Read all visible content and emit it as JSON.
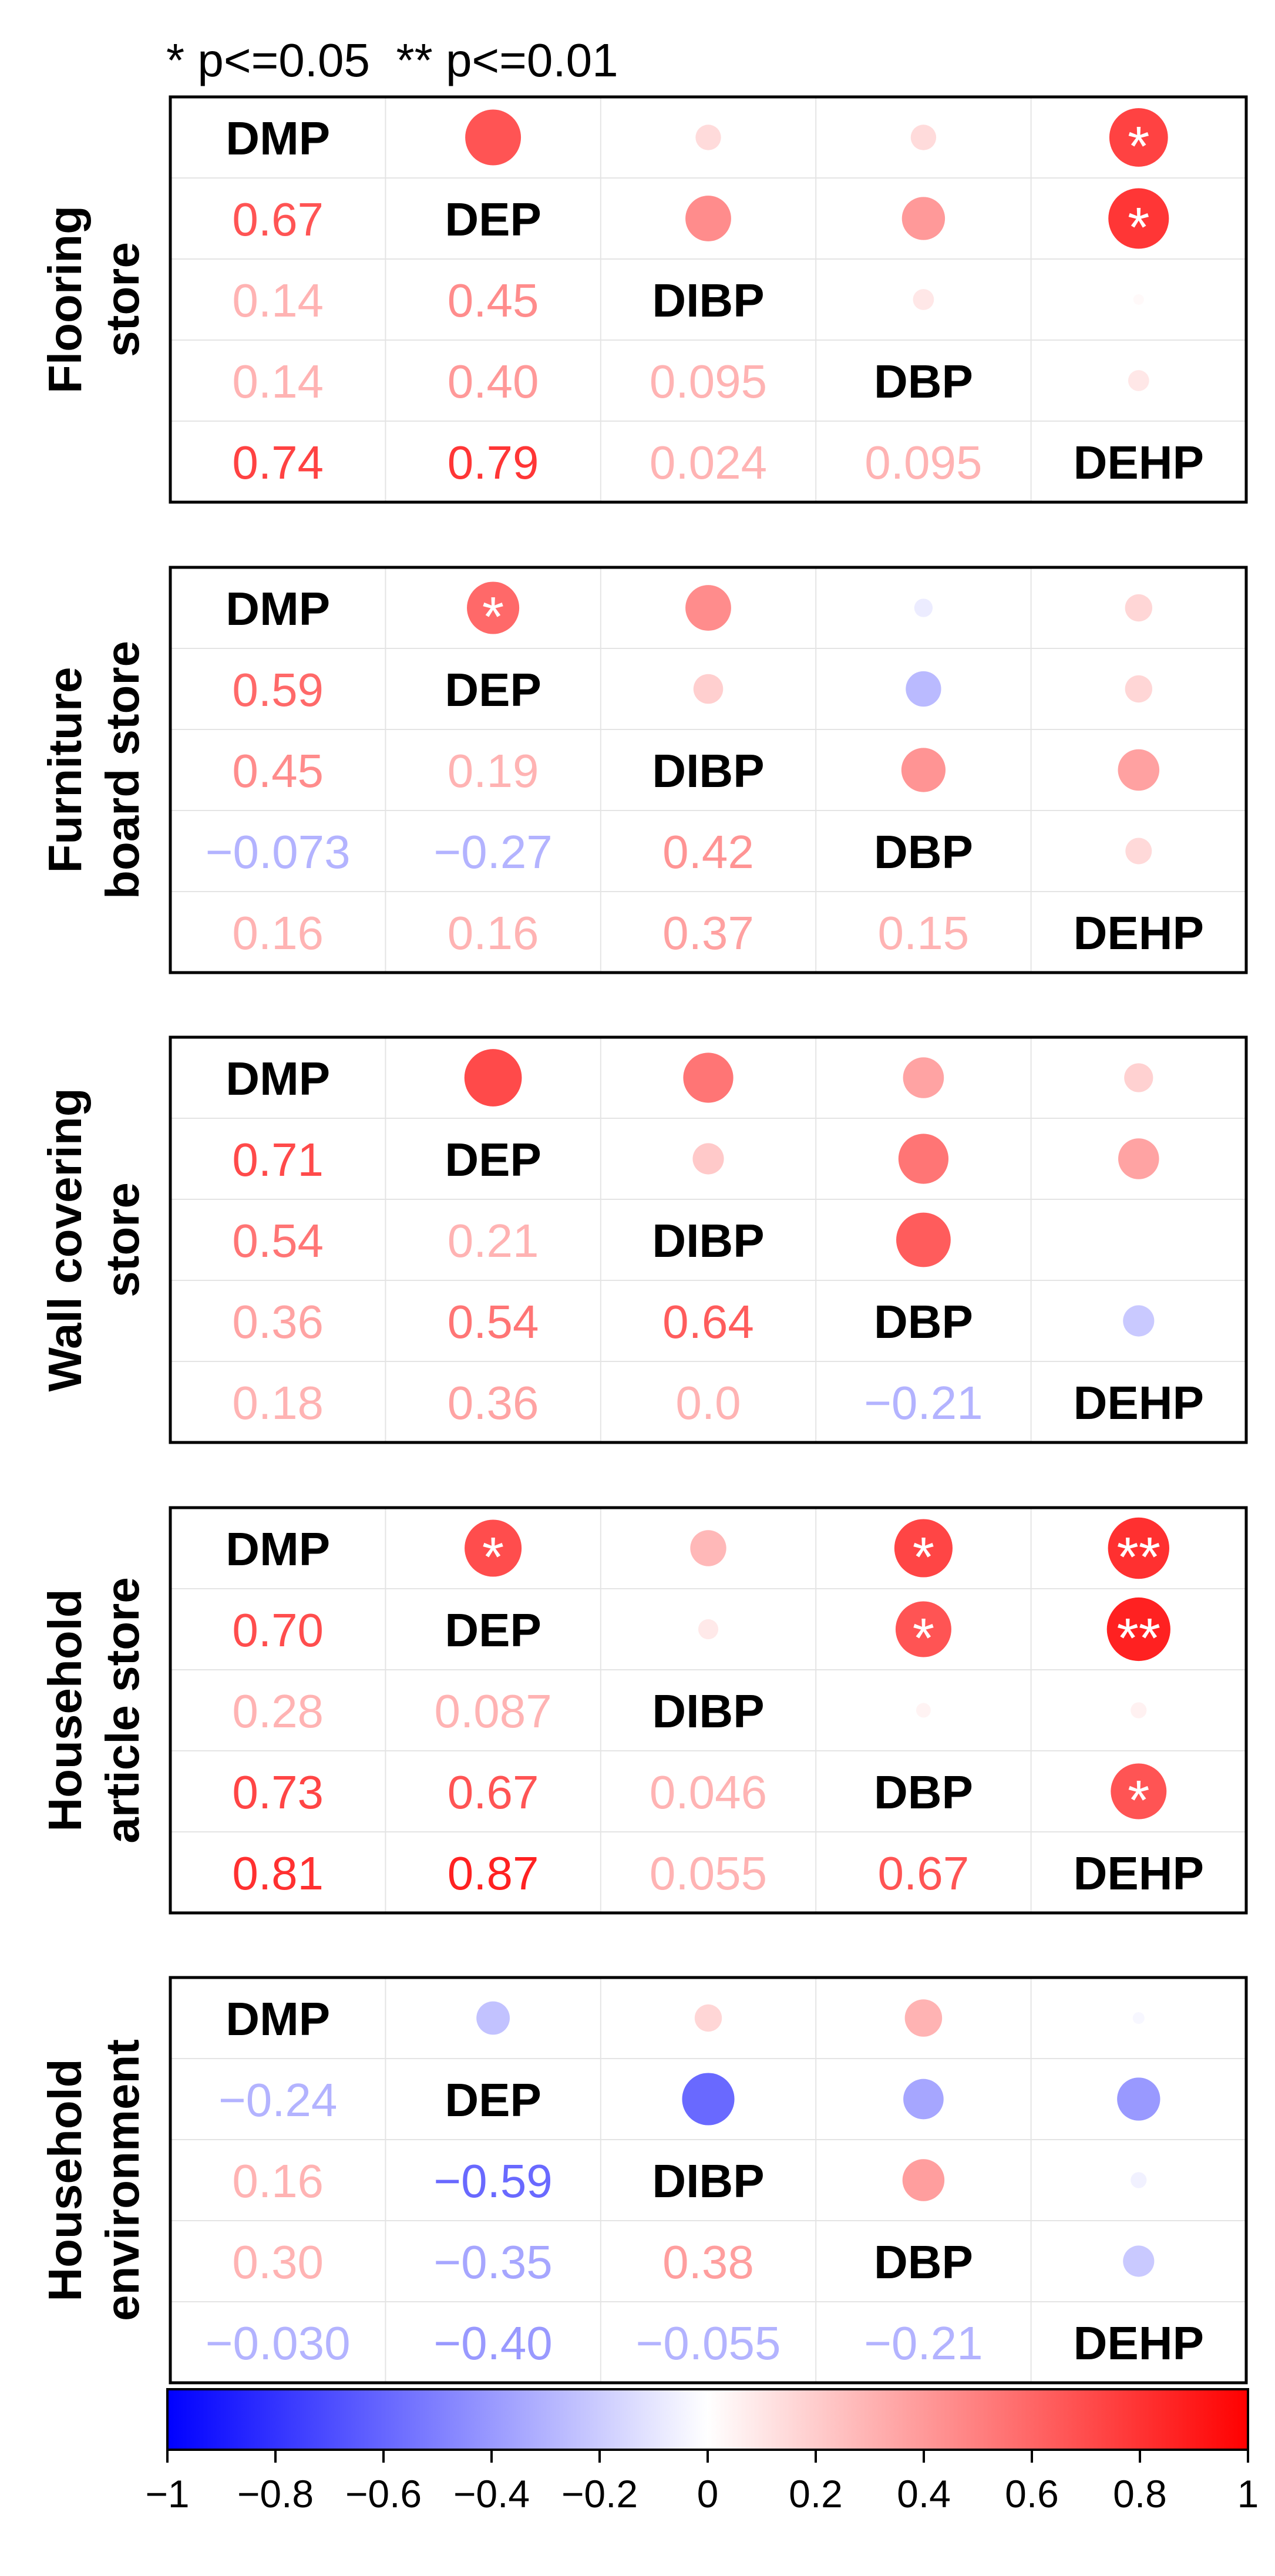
{
  "legend_note": "* p<=0.05  ** p<=0.01",
  "colorbar": {
    "ticks": [
      "−1",
      "−0.8",
      "−0.6",
      "−0.4",
      "−0.2",
      "0",
      "0.2",
      "0.4",
      "0.6",
      "0.8",
      "1"
    ],
    "range": [
      -1,
      1
    ],
    "colors": {
      "neg": "#0000ff",
      "zero": "#ffffff",
      "pos": "#ff0000"
    }
  },
  "chart_data": [
    {
      "type": "heatmap",
      "panel": "Flooring store",
      "title": "Flooring\nstore",
      "variables": [
        "DMP",
        "DEP",
        "DIBP",
        "DBP",
        "DEHP"
      ],
      "matrix": [
        [
          1,
          0.67,
          0.14,
          0.14,
          0.74
        ],
        [
          0.67,
          1,
          0.45,
          0.4,
          0.79
        ],
        [
          0.14,
          0.45,
          1,
          0.095,
          0.024
        ],
        [
          0.14,
          0.4,
          0.095,
          1,
          0.095
        ],
        [
          0.74,
          0.79,
          0.024,
          0.095,
          1
        ]
      ],
      "lower_labels": [
        [
          null,
          null,
          null,
          null,
          null
        ],
        [
          "0.67",
          null,
          null,
          null,
          null
        ],
        [
          "0.14",
          "0.45",
          null,
          null,
          null
        ],
        [
          "0.14",
          "0.40",
          "0.095",
          null,
          null
        ],
        [
          "0.74",
          "0.79",
          "0.024",
          "0.095",
          null
        ]
      ],
      "stars": [
        [
          null,
          "",
          "",
          "",
          "*"
        ],
        [
          null,
          null,
          "",
          "",
          "*"
        ],
        [
          null,
          null,
          null,
          "",
          ""
        ],
        [
          null,
          null,
          null,
          null,
          ""
        ],
        [
          null,
          null,
          null,
          null,
          null
        ]
      ]
    },
    {
      "type": "heatmap",
      "panel": "Furniture board store",
      "title": "Furniture\nboard store",
      "variables": [
        "DMP",
        "DEP",
        "DIBP",
        "DBP",
        "DEHP"
      ],
      "matrix": [
        [
          1,
          0.59,
          0.45,
          -0.073,
          0.16
        ],
        [
          0.59,
          1,
          0.19,
          -0.27,
          0.16
        ],
        [
          0.45,
          0.19,
          1,
          0.42,
          0.37
        ],
        [
          -0.073,
          -0.27,
          0.42,
          1,
          0.15
        ],
        [
          0.16,
          0.16,
          0.37,
          0.15,
          1
        ]
      ],
      "lower_labels": [
        [
          null,
          null,
          null,
          null,
          null
        ],
        [
          "0.59",
          null,
          null,
          null,
          null
        ],
        [
          "0.45",
          "0.19",
          null,
          null,
          null
        ],
        [
          "−0.073",
          "−0.27",
          "0.42",
          null,
          null
        ],
        [
          "0.16",
          "0.16",
          "0.37",
          "0.15",
          null
        ]
      ],
      "stars": [
        [
          null,
          "*",
          "",
          "",
          ""
        ],
        [
          null,
          null,
          "",
          "",
          ""
        ],
        [
          null,
          null,
          null,
          "",
          ""
        ],
        [
          null,
          null,
          null,
          null,
          ""
        ],
        [
          null,
          null,
          null,
          null,
          null
        ]
      ]
    },
    {
      "type": "heatmap",
      "panel": "Wall covering store",
      "title": "Wall covering\nstore",
      "variables": [
        "DMP",
        "DEP",
        "DIBP",
        "DBP",
        "DEHP"
      ],
      "matrix": [
        [
          1,
          0.71,
          0.54,
          0.36,
          0.18
        ],
        [
          0.71,
          1,
          0.21,
          0.54,
          0.36
        ],
        [
          0.54,
          0.21,
          1,
          0.64,
          0.0
        ],
        [
          0.36,
          0.54,
          0.64,
          1,
          -0.21
        ],
        [
          0.18,
          0.36,
          0.0,
          -0.21,
          1
        ]
      ],
      "lower_labels": [
        [
          null,
          null,
          null,
          null,
          null
        ],
        [
          "0.71",
          null,
          null,
          null,
          null
        ],
        [
          "0.54",
          "0.21",
          null,
          null,
          null
        ],
        [
          "0.36",
          "0.54",
          "0.64",
          null,
          null
        ],
        [
          "0.18",
          "0.36",
          "0.0",
          "−0.21",
          null
        ]
      ],
      "stars": [
        [
          null,
          "",
          "",
          "",
          ""
        ],
        [
          null,
          null,
          "",
          "",
          ""
        ],
        [
          null,
          null,
          null,
          "",
          ""
        ],
        [
          null,
          null,
          null,
          null,
          ""
        ],
        [
          null,
          null,
          null,
          null,
          null
        ]
      ]
    },
    {
      "type": "heatmap",
      "panel": "Household article store",
      "title": "Household\narticle store",
      "variables": [
        "DMP",
        "DEP",
        "DIBP",
        "DBP",
        "DEHP"
      ],
      "matrix": [
        [
          1,
          0.7,
          0.28,
          0.73,
          0.81
        ],
        [
          0.7,
          1,
          0.087,
          0.67,
          0.87
        ],
        [
          0.28,
          0.087,
          1,
          0.046,
          0.055
        ],
        [
          0.73,
          0.67,
          0.046,
          1,
          0.67
        ],
        [
          0.81,
          0.87,
          0.055,
          0.67,
          1
        ]
      ],
      "lower_labels": [
        [
          null,
          null,
          null,
          null,
          null
        ],
        [
          "0.70",
          null,
          null,
          null,
          null
        ],
        [
          "0.28",
          "0.087",
          null,
          null,
          null
        ],
        [
          "0.73",
          "0.67",
          "0.046",
          null,
          null
        ],
        [
          "0.81",
          "0.87",
          "0.055",
          "0.67",
          null
        ]
      ],
      "stars": [
        [
          null,
          "*",
          "",
          "*",
          "**"
        ],
        [
          null,
          null,
          "",
          "*",
          "**"
        ],
        [
          null,
          null,
          null,
          "",
          ""
        ],
        [
          null,
          null,
          null,
          null,
          "*"
        ],
        [
          null,
          null,
          null,
          null,
          null
        ]
      ]
    },
    {
      "type": "heatmap",
      "panel": "Household environment",
      "title": "Household\nenvironment",
      "variables": [
        "DMP",
        "DEP",
        "DIBP",
        "DBP",
        "DEHP"
      ],
      "matrix": [
        [
          1,
          -0.24,
          0.16,
          0.3,
          -0.03
        ],
        [
          -0.24,
          1,
          -0.59,
          -0.35,
          -0.4
        ],
        [
          0.16,
          -0.59,
          1,
          0.38,
          -0.055
        ],
        [
          0.3,
          -0.35,
          0.38,
          1,
          -0.21
        ],
        [
          -0.03,
          -0.4,
          -0.055,
          -0.21,
          1
        ]
      ],
      "lower_labels": [
        [
          null,
          null,
          null,
          null,
          null
        ],
        [
          "−0.24",
          null,
          null,
          null,
          null
        ],
        [
          "0.16",
          "−0.59",
          null,
          null,
          null
        ],
        [
          "0.30",
          "−0.35",
          "0.38",
          null,
          null
        ],
        [
          "−0.030",
          "−0.40",
          "−0.055",
          "−0.21",
          null
        ]
      ],
      "stars": [
        [
          null,
          "",
          "",
          "",
          ""
        ],
        [
          null,
          null,
          "",
          "",
          ""
        ],
        [
          null,
          null,
          null,
          "",
          ""
        ],
        [
          null,
          null,
          null,
          null,
          ""
        ],
        [
          null,
          null,
          null,
          null,
          null
        ]
      ]
    }
  ]
}
